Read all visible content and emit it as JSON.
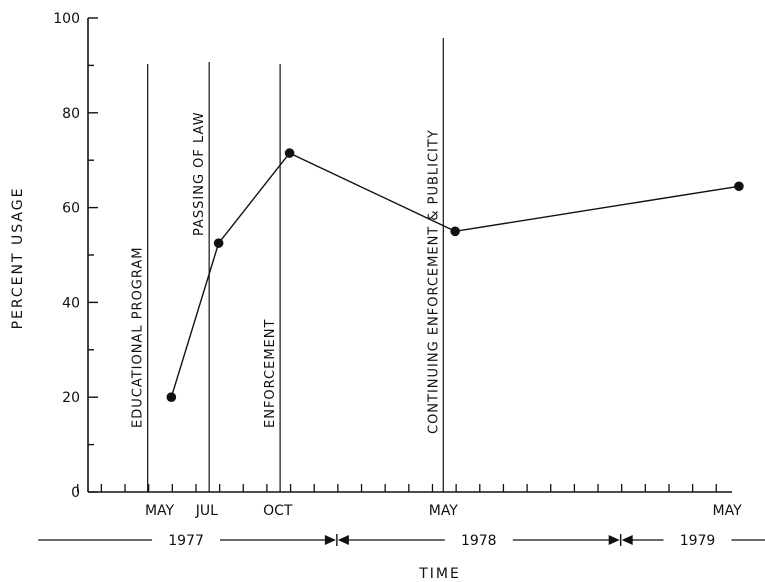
{
  "chart_data": {
    "type": "line",
    "title": "",
    "xlabel": "TIME",
    "ylabel": "PERCENT USAGE",
    "ylim": [
      0,
      100
    ],
    "yticks": [
      0,
      20,
      40,
      60,
      80,
      100
    ],
    "grid": false,
    "month_labels": [
      {
        "label": "MAY",
        "month": 0
      },
      {
        "label": "JUL",
        "month": 2
      },
      {
        "label": "OCT",
        "month": 5
      },
      {
        "label": "MAY",
        "month": 12
      },
      {
        "label": "MAY",
        "month": 24
      }
    ],
    "year_spans": [
      {
        "label": "1977",
        "start": -5,
        "end": 7.5
      },
      {
        "label": "1978",
        "start": 7.5,
        "end": 19.5
      },
      {
        "label": "1979",
        "start": 19.5,
        "end": 26
      }
    ],
    "phases": [
      {
        "label": "EDUCATIONAL  PROGRAM",
        "month": -0.5
      },
      {
        "label": "PASSING  OF  LAW",
        "month": 2.1
      },
      {
        "label": "ENFORCEMENT",
        "month": 5.1
      },
      {
        "label": "CONTINUING  ENFORCEMENT  &  PUBLICITY",
        "month": 12
      }
    ],
    "series": [
      {
        "x": [
          0.5,
          2.5,
          5.5,
          12.5,
          24.5
        ],
        "y": [
          20,
          52.5,
          71.5,
          55,
          64.5
        ]
      }
    ]
  }
}
